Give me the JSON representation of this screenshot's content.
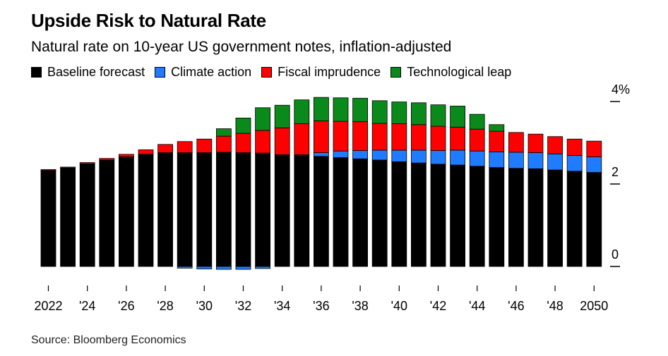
{
  "header": {
    "title": "Upside Risk to Natural Rate",
    "subtitle": "Natural rate on 10-year US government notes, inflation-adjusted"
  },
  "legend": [
    {
      "label": "Baseline forecast",
      "color": "#000000"
    },
    {
      "label": "Climate action",
      "color": "#1f7bff"
    },
    {
      "label": "Fiscal imprudence",
      "color": "#ff0000"
    },
    {
      "label": "Technological leap",
      "color": "#0a8a1a"
    }
  ],
  "footer": {
    "source": "Source: Bloomberg Economics"
  },
  "chart_data": {
    "type": "bar",
    "stacked": true,
    "title": "Upside Risk to Natural Rate",
    "subtitle": "Natural rate on 10-year US government notes, inflation-adjusted",
    "categories": [
      2022,
      2023,
      2024,
      2025,
      2026,
      2027,
      2028,
      2029,
      2030,
      2031,
      2032,
      2033,
      2034,
      2035,
      2036,
      2037,
      2038,
      2039,
      2040,
      2041,
      2042,
      2043,
      2044,
      2045,
      2046,
      2047,
      2048,
      2049,
      2050
    ],
    "x_tick_labels": [
      "2022",
      "'24",
      "'26",
      "'28",
      "'30",
      "'32",
      "'34",
      "'36",
      "'38",
      "'40",
      "'42",
      "'44",
      "'46",
      "'48",
      "2050"
    ],
    "y_tick_labels": [
      "4%",
      "2",
      "0"
    ],
    "y_ticks": [
      4,
      2,
      0
    ],
    "ylim": [
      -0.2,
      4.3
    ],
    "axis_side": "right",
    "series": [
      {
        "name": "Baseline forecast",
        "color": "#000000",
        "values": [
          2.33,
          2.39,
          2.49,
          2.58,
          2.66,
          2.72,
          2.76,
          2.76,
          2.76,
          2.77,
          2.76,
          2.75,
          2.71,
          2.69,
          2.67,
          2.64,
          2.61,
          2.58,
          2.54,
          2.51,
          2.48,
          2.46,
          2.43,
          2.4,
          2.38,
          2.37,
          2.34,
          2.31,
          2.28
        ]
      },
      {
        "name": "Climate action",
        "color": "#1f7bff",
        "values": [
          0,
          0,
          0,
          0,
          0,
          0,
          0,
          -0.04,
          -0.06,
          -0.07,
          -0.07,
          -0.05,
          0,
          0.02,
          0.09,
          0.16,
          0.2,
          0.24,
          0.28,
          0.31,
          0.33,
          0.36,
          0.37,
          0.38,
          0.39,
          0.39,
          0.39,
          0.38,
          0.38
        ]
      },
      {
        "name": "Fiscal imprudence",
        "color": "#ff0000",
        "values": [
          0.02,
          0.02,
          0.03,
          0.04,
          0.06,
          0.11,
          0.2,
          0.27,
          0.33,
          0.39,
          0.47,
          0.55,
          0.65,
          0.75,
          0.77,
          0.72,
          0.7,
          0.65,
          0.64,
          0.62,
          0.59,
          0.56,
          0.53,
          0.5,
          0.48,
          0.45,
          0.42,
          0.4,
          0.38
        ]
      },
      {
        "name": "Technological leap",
        "color": "#0a8a1a",
        "values": [
          0,
          0,
          0,
          0,
          0,
          0,
          0,
          0,
          0,
          0.18,
          0.37,
          0.55,
          0.55,
          0.58,
          0.57,
          0.57,
          0.57,
          0.55,
          0.53,
          0.53,
          0.52,
          0.51,
          0.36,
          0.16,
          0,
          0,
          0,
          0,
          0
        ]
      }
    ]
  }
}
